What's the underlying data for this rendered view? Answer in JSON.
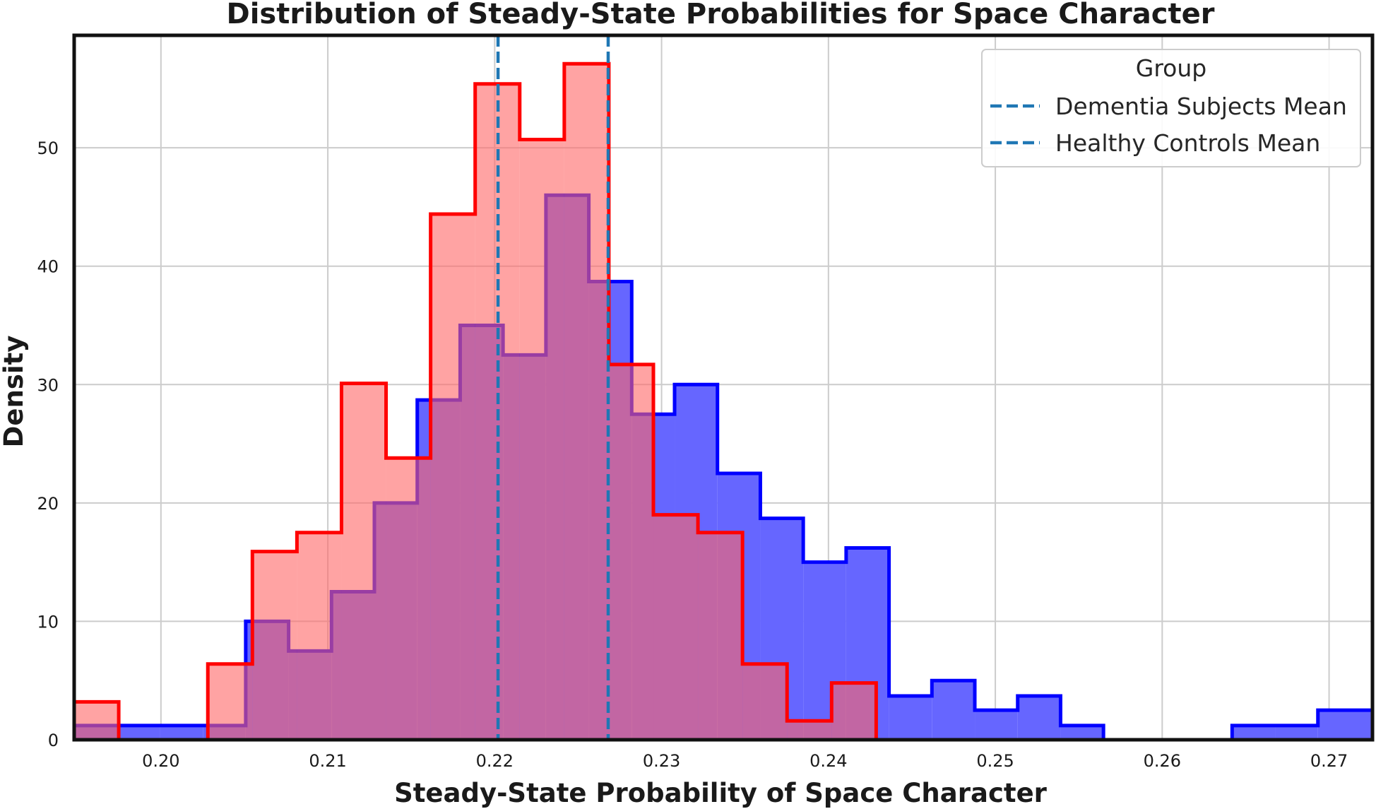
{
  "chart_data": {
    "type": "histogram",
    "title": "Distribution of Steady-State Probabilities for Space Character",
    "xlabel": "Steady-State Probability of Space Character",
    "ylabel": "Density",
    "xlim": [
      0.1948,
      0.2726
    ],
    "ylim": [
      0,
      59.5
    ],
    "x_ticks": [
      0.2,
      0.21,
      0.22,
      0.23,
      0.24,
      0.25,
      0.26,
      0.27
    ],
    "x_tick_labels": [
      "0.20",
      "0.21",
      "0.22",
      "0.23",
      "0.24",
      "0.25",
      "0.26",
      "0.27"
    ],
    "y_ticks": [
      0,
      10,
      20,
      30,
      40,
      50
    ],
    "y_tick_labels": [
      "0",
      "10",
      "20",
      "30",
      "40",
      "50"
    ],
    "grid": true,
    "legend": {
      "title": "Group",
      "placement": "top-right",
      "entries": [
        {
          "label": "Dementia Subjects Mean",
          "style": "dashed",
          "color": "#1f77b4"
        },
        {
          "label": "Healthy Controls Mean",
          "style": "dashed",
          "color": "#1f77b4"
        }
      ]
    },
    "series": [
      {
        "color": "#0000ff",
        "fill": "#6666ff",
        "bin_edges": [
          0.1948,
          0.19737,
          0.19994,
          0.20251,
          0.20508,
          0.20765,
          0.21022,
          0.21279,
          0.21536,
          0.21793,
          0.2205,
          0.22307,
          0.22564,
          0.22821,
          0.23078,
          0.23335,
          0.23592,
          0.23849,
          0.24106,
          0.24363,
          0.2462,
          0.24877,
          0.25134,
          0.25391,
          0.25648,
          0.25905,
          0.26162,
          0.26419,
          0.26676,
          0.26933,
          0.2726
        ],
        "densities": [
          1.2,
          1.2,
          1.2,
          1.2,
          10.0,
          7.5,
          12.5,
          20.0,
          28.7,
          35.0,
          32.5,
          46.0,
          38.7,
          27.5,
          30.0,
          22.5,
          18.7,
          15.0,
          16.2,
          3.7,
          5.0,
          2.5,
          3.7,
          1.2,
          0,
          0,
          0,
          1.2,
          1.2,
          2.5
        ]
      },
      {
        "color": "#ff0000",
        "fill": "#ff6666",
        "bin_edges": [
          0.1948,
          0.19747,
          0.20014,
          0.20281,
          0.20548,
          0.20815,
          0.21082,
          0.21349,
          0.21616,
          0.21883,
          0.2215,
          0.22417,
          0.22684,
          0.22951,
          0.23218,
          0.23485,
          0.23752,
          0.24019,
          0.24286
        ],
        "densities": [
          3.2,
          0,
          0,
          6.4,
          15.9,
          17.5,
          30.1,
          23.8,
          44.4,
          55.4,
          50.7,
          57.1,
          31.7,
          19.0,
          17.5,
          6.4,
          1.6,
          4.8
        ]
      }
    ],
    "mean_lines": [
      {
        "label": "Dementia Subjects Mean",
        "x": 0.2202
      },
      {
        "label": "Healthy Controls Mean",
        "x": 0.2268
      }
    ],
    "overlap_color": "#b82e63"
  }
}
